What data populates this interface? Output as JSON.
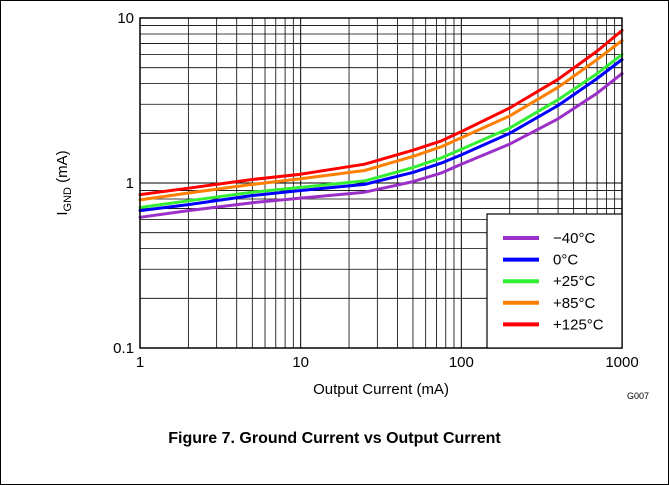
{
  "chart_data": {
    "type": "line",
    "title": "Figure 7. Ground Current vs Output Current",
    "xlabel": "Output Current (mA)",
    "ylabel_main": "I",
    "ylabel_sub": "GND",
    "ylabel_unit": " (mA)",
    "figure_code": "G007",
    "xscale": "log",
    "yscale": "log",
    "xlim": [
      1,
      1000
    ],
    "ylim": [
      0.1,
      10
    ],
    "grid": true,
    "legend_position": "lower-right",
    "x_ticks": [
      {
        "value": 1,
        "label": "1"
      },
      {
        "value": 10,
        "label": "10"
      },
      {
        "value": 100,
        "label": "100"
      },
      {
        "value": 1000,
        "label": "1000"
      }
    ],
    "y_ticks": [
      {
        "value": 0.1,
        "label": "0.1"
      },
      {
        "value": 1,
        "label": "1"
      },
      {
        "value": 10,
        "label": "10"
      }
    ],
    "x": [
      1,
      2,
      5,
      10,
      25,
      50,
      75,
      100,
      200,
      400,
      700,
      1000
    ],
    "series": [
      {
        "name": "−40°C",
        "color": "#9b30c8",
        "values": [
          0.62,
          0.68,
          0.76,
          0.81,
          0.88,
          1.02,
          1.15,
          1.3,
          1.72,
          2.45,
          3.5,
          4.6
        ]
      },
      {
        "name": "0°C",
        "color": "#0000ff",
        "values": [
          0.68,
          0.74,
          0.84,
          0.9,
          0.98,
          1.16,
          1.32,
          1.48,
          2.0,
          2.95,
          4.3,
          5.6
        ]
      },
      {
        "name": "+25°C",
        "color": "#33ee33",
        "values": [
          0.71,
          0.78,
          0.88,
          0.94,
          1.03,
          1.24,
          1.42,
          1.6,
          2.15,
          3.2,
          4.6,
          6.0
        ]
      },
      {
        "name": "+85°C",
        "color": "#ff8000",
        "values": [
          0.79,
          0.87,
          0.98,
          1.06,
          1.19,
          1.45,
          1.66,
          1.88,
          2.55,
          3.8,
          5.6,
          7.3
        ]
      },
      {
        "name": "+125°C",
        "color": "#ff0000",
        "values": [
          0.85,
          0.93,
          1.05,
          1.13,
          1.3,
          1.58,
          1.8,
          2.05,
          2.85,
          4.25,
          6.3,
          8.4
        ]
      }
    ]
  }
}
